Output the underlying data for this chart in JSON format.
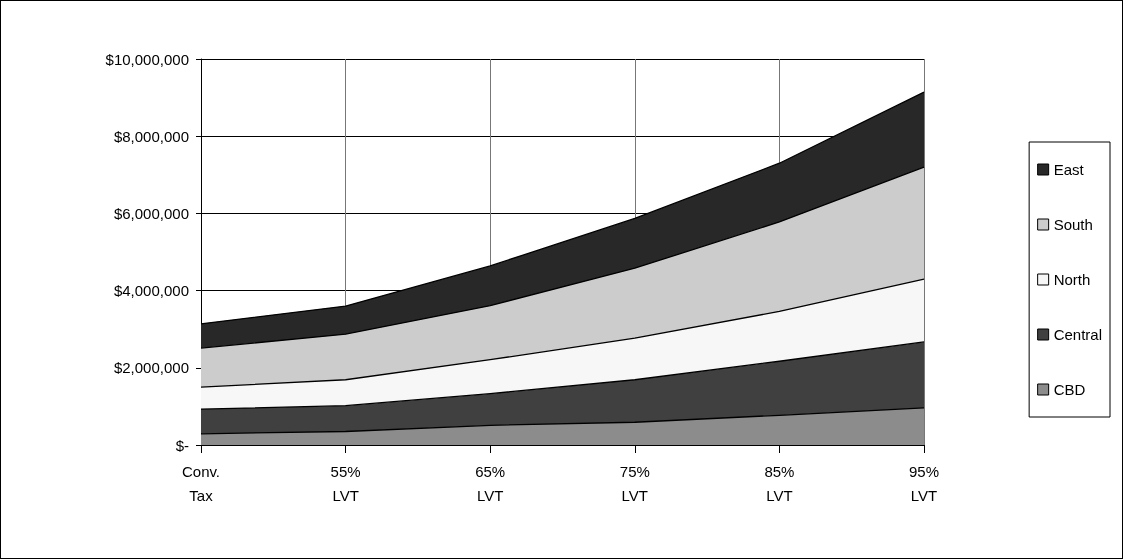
{
  "chart_data": {
    "type": "area",
    "stacked": true,
    "categories": [
      "Conv.\nTax",
      "55%\nLVT",
      "65%\nLVT",
      "75%\nLVT",
      "85%\nLVT",
      "95%\nLVT"
    ],
    "series": [
      {
        "name": "CBD",
        "color": "#8c8c8c",
        "values": [
          290000,
          350000,
          510000,
          590000,
          770000,
          960000
        ]
      },
      {
        "name": "Central",
        "color": "#404040",
        "values": [
          640000,
          670000,
          820000,
          1100000,
          1400000,
          1710000
        ]
      },
      {
        "name": "North",
        "color": "#f7f7f7",
        "values": [
          570000,
          670000,
          880000,
          1080000,
          1290000,
          1630000
        ]
      },
      {
        "name": "South",
        "color": "#cccccc",
        "values": [
          1010000,
          1180000,
          1400000,
          1810000,
          2320000,
          2900000
        ]
      },
      {
        "name": "East",
        "color": "#282828",
        "values": [
          630000,
          730000,
          1030000,
          1290000,
          1520000,
          1940000
        ]
      }
    ],
    "ylim": [
      0,
      10000000
    ],
    "yticks": [
      {
        "value": 0,
        "label": "$-"
      },
      {
        "value": 2000000,
        "label": "$2,000,000"
      },
      {
        "value": 4000000,
        "label": "$4,000,000"
      },
      {
        "value": 6000000,
        "label": "$6,000,000"
      },
      {
        "value": 8000000,
        "label": "$8,000,000"
      },
      {
        "value": 10000000,
        "label": "$10,000,000"
      }
    ],
    "grid": true,
    "legend": "right"
  }
}
